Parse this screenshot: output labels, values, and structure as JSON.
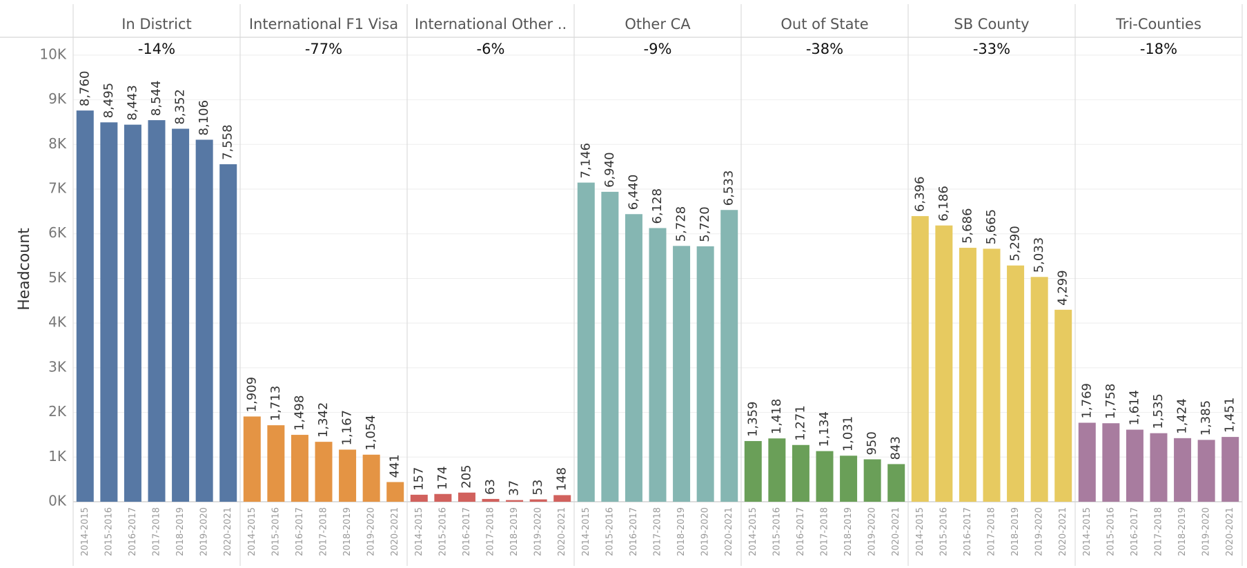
{
  "chart_data": {
    "type": "bar",
    "y_label": "Headcount",
    "categories": [
      "2014-2015",
      "2015-2016",
      "2016-2017",
      "2017-2018",
      "2018-2019",
      "2019-2020",
      "2020-2021"
    ],
    "ylim": [
      0,
      10400
    ],
    "yticks": [
      {
        "value": 0,
        "label": "0K"
      },
      {
        "value": 1000,
        "label": "1K"
      },
      {
        "value": 2000,
        "label": "2K"
      },
      {
        "value": 3000,
        "label": "3K"
      },
      {
        "value": 4000,
        "label": "4K"
      },
      {
        "value": 5000,
        "label": "5K"
      },
      {
        "value": 6000,
        "label": "6K"
      },
      {
        "value": 7000,
        "label": "7K"
      },
      {
        "value": 8000,
        "label": "8K"
      },
      {
        "value": 9000,
        "label": "9K"
      },
      {
        "value": 10000,
        "label": "10K"
      }
    ],
    "grid": true,
    "series": [
      {
        "name": "In District",
        "annotation": "-14%",
        "color": "#5778a4",
        "values": [
          8760,
          8495,
          8443,
          8544,
          8352,
          8106,
          7558
        ],
        "value_labels": [
          "8,760",
          "8,495",
          "8,443",
          "8,544",
          "8,352",
          "8,106",
          "7,558"
        ]
      },
      {
        "name": "International F1 Visa",
        "annotation": "-77%",
        "color": "#e49444",
        "values": [
          1909,
          1713,
          1498,
          1342,
          1167,
          1054,
          441
        ],
        "value_labels": [
          "1,909",
          "1,713",
          "1,498",
          "1,342",
          "1,167",
          "1,054",
          "441"
        ]
      },
      {
        "name": "International Other ..",
        "annotation": "-6%",
        "color": "#d1615d",
        "values": [
          157,
          174,
          205,
          63,
          37,
          53,
          148
        ],
        "value_labels": [
          "157",
          "174",
          "205",
          "63",
          "37",
          "53",
          "148"
        ]
      },
      {
        "name": "Other CA",
        "annotation": "-9%",
        "color": "#85b6b2",
        "values": [
          7146,
          6940,
          6440,
          6128,
          5728,
          5720,
          6533
        ],
        "value_labels": [
          "7,146",
          "6,940",
          "6,440",
          "6,128",
          "5,728",
          "5,720",
          "6,533"
        ]
      },
      {
        "name": "Out of State",
        "annotation": "-38%",
        "color": "#6a9f58",
        "values": [
          1359,
          1418,
          1271,
          1134,
          1031,
          950,
          843
        ],
        "value_labels": [
          "1,359",
          "1,418",
          "1,271",
          "1,134",
          "1,031",
          "950",
          "843"
        ]
      },
      {
        "name": "SB County",
        "annotation": "-33%",
        "color": "#e7ca60",
        "values": [
          6396,
          6186,
          5686,
          5665,
          5290,
          5033,
          4299
        ],
        "value_labels": [
          "6,396",
          "6,186",
          "5,686",
          "5,665",
          "5,290",
          "5,033",
          "4,299"
        ]
      },
      {
        "name": "Tri-Counties",
        "annotation": "-18%",
        "color": "#a87c9f",
        "values": [
          1769,
          1758,
          1614,
          1535,
          1424,
          1385,
          1451
        ],
        "value_labels": [
          "1,769",
          "1,758",
          "1,614",
          "1,535",
          "1,424",
          "1,385",
          "1,451"
        ]
      }
    ]
  }
}
